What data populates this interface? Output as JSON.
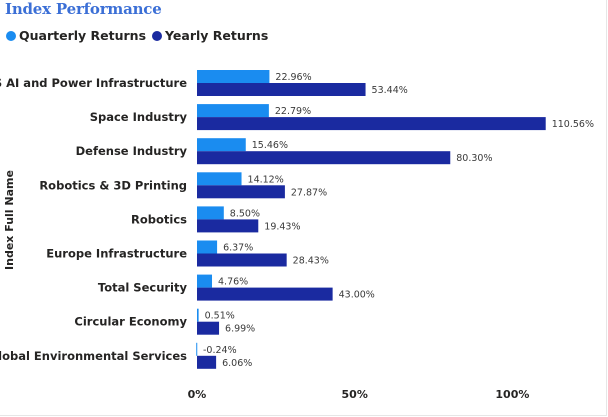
{
  "chart_data": {
    "type": "bar",
    "orientation": "horizontal",
    "title": "Index Performance",
    "ylabel": "Index Full Name",
    "xlabel": "",
    "xlim": [
      0,
      115
    ],
    "xticks": [
      0,
      50,
      100
    ],
    "xtick_labels": [
      "0%",
      "50%",
      "100%"
    ],
    "legend_position": "top-left",
    "categories": [
      "US AI and Power Infrastructure",
      "Space Industry",
      "Defense Industry",
      "Robotics & 3D Printing",
      "Robotics",
      "Europe Infrastructure",
      "Total Security",
      "Circular Economy",
      "Global Environmental Services"
    ],
    "series": [
      {
        "name": "Quarterly Returns",
        "color": "#1a8cf0",
        "values": [
          22.96,
          22.79,
          15.46,
          14.12,
          8.5,
          6.37,
          4.76,
          0.51,
          -0.24
        ],
        "labels": [
          "22.96%",
          "22.79%",
          "15.46%",
          "14.12%",
          "8.50%",
          "6.37%",
          "4.76%",
          "0.51%",
          "-0.24%"
        ]
      },
      {
        "name": "Yearly Returns",
        "color": "#1a2aa0",
        "values": [
          53.44,
          110.56,
          80.3,
          27.87,
          19.43,
          28.43,
          43.0,
          6.99,
          6.06
        ],
        "labels": [
          "53.44%",
          "110.56%",
          "80.30%",
          "27.87%",
          "19.43%",
          "28.43%",
          "43.00%",
          "6.99%",
          "6.06%"
        ]
      }
    ]
  }
}
